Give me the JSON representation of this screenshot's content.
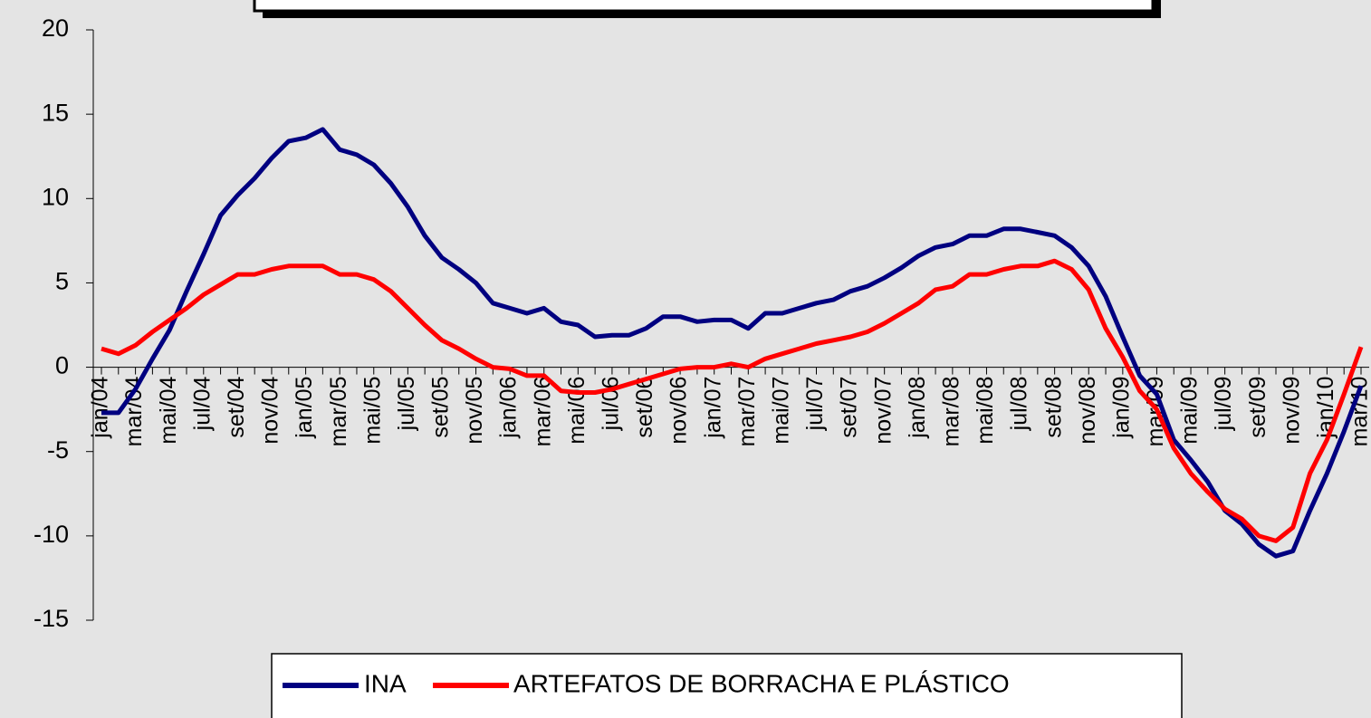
{
  "chart_data": {
    "type": "line",
    "categories": [
      "jan/04",
      null,
      "mar/04",
      null,
      "mai/04",
      null,
      "jul/04",
      null,
      "set/04",
      null,
      "nov/04",
      null,
      "jan/05",
      null,
      "mar/05",
      null,
      "mai/05",
      null,
      "jul/05",
      null,
      "set/05",
      null,
      "nov/05",
      null,
      "jan/06",
      null,
      "mar/06",
      null,
      "mai/06",
      null,
      "jul/06",
      null,
      "set/06",
      null,
      "nov/06",
      null,
      "jan/07",
      null,
      "mar/07",
      null,
      "mai/07",
      null,
      "jul/07",
      null,
      "set/07",
      null,
      "nov/07",
      null,
      "jan/08",
      null,
      "mar/08",
      null,
      "mai/08",
      null,
      "jul/08",
      null,
      "set/08",
      null,
      "nov/08",
      null,
      "jan/09",
      null,
      "mar/09",
      null,
      "mai/09",
      null,
      "jul/09",
      null,
      "set/09",
      null,
      "nov/09",
      null,
      "jan/10",
      null,
      "mar/10"
    ],
    "series": [
      {
        "name": "INA",
        "color": "#000080",
        "values": [
          -2.7,
          -2.7,
          -1.3,
          0.5,
          2.2,
          4.5,
          6.7,
          9.0,
          10.2,
          11.2,
          12.4,
          13.4,
          13.6,
          14.1,
          12.9,
          12.6,
          12.0,
          10.9,
          9.5,
          7.8,
          6.5,
          5.8,
          5.0,
          3.8,
          3.5,
          3.2,
          3.5,
          2.7,
          2.5,
          1.8,
          1.9,
          1.9,
          2.3,
          3.0,
          3.0,
          2.7,
          2.8,
          2.8,
          2.3,
          3.2,
          3.2,
          3.5,
          3.8,
          4.0,
          4.5,
          4.8,
          5.3,
          5.9,
          6.6,
          7.1,
          7.3,
          7.8,
          7.8,
          8.2,
          8.2,
          8.0,
          7.8,
          7.1,
          6.0,
          4.2,
          1.8,
          -0.5,
          -1.6,
          -4.3,
          -5.5,
          -6.8,
          -8.5,
          -9.3,
          -10.5,
          -11.2,
          -10.9,
          -8.5,
          -6.3,
          -3.8,
          -1.1
        ]
      },
      {
        "name": "ARTEFATOS DE BORRACHA E PLÁSTICO",
        "color": "#ff0000",
        "values": [
          1.1,
          0.8,
          1.3,
          2.1,
          2.8,
          3.5,
          4.3,
          4.9,
          5.5,
          5.5,
          5.8,
          6.0,
          6.0,
          6.0,
          5.5,
          5.5,
          5.2,
          4.5,
          3.5,
          2.5,
          1.6,
          1.1,
          0.5,
          0.0,
          -0.1,
          -0.5,
          -0.5,
          -1.4,
          -1.5,
          -1.5,
          -1.3,
          -1.0,
          -0.7,
          -0.4,
          -0.1,
          0.0,
          0.0,
          0.2,
          0.0,
          0.5,
          0.8,
          1.1,
          1.4,
          1.6,
          1.8,
          2.1,
          2.6,
          3.2,
          3.8,
          4.6,
          4.8,
          5.5,
          5.5,
          5.8,
          6.0,
          6.0,
          6.3,
          5.8,
          4.6,
          2.3,
          0.6,
          -1.4,
          -2.5,
          -4.8,
          -6.3,
          -7.4,
          -8.4,
          -9.0,
          -10.0,
          -10.3,
          -9.5,
          -6.3,
          -4.3,
          -1.6,
          1.2
        ]
      }
    ],
    "ylim": [
      -15,
      20
    ],
    "yticks": [
      -15,
      -10,
      -5,
      0,
      5,
      10,
      15,
      20
    ],
    "legend": "bottom"
  }
}
